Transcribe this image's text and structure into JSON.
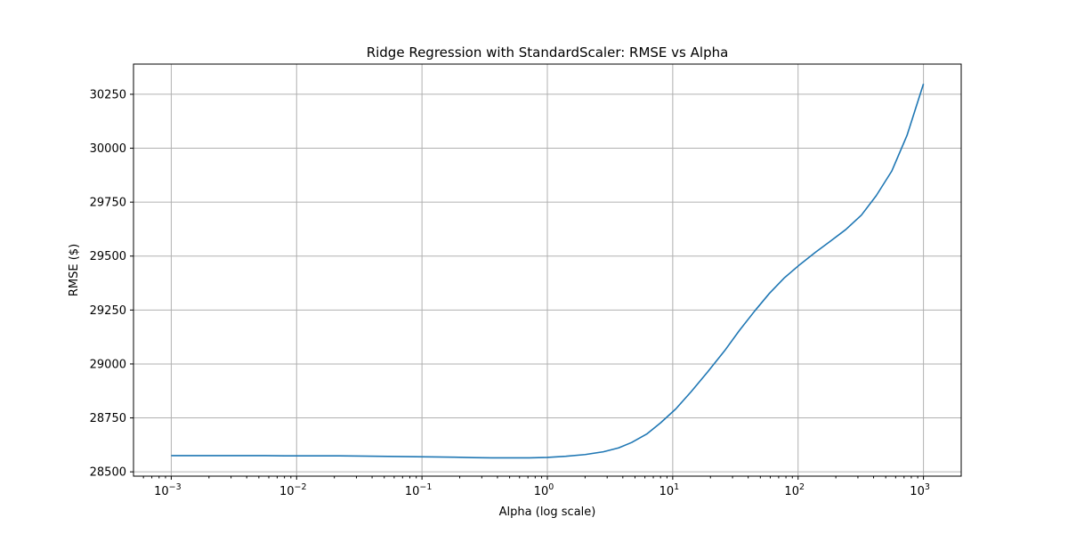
{
  "chart_data": {
    "type": "line",
    "title": "Ridge Regression with StandardScaler: RMSE vs Alpha",
    "xlabel": "Alpha (log scale)",
    "ylabel": "RMSE ($)",
    "x_scale": "log",
    "xlim": [
      0.0005,
      2000
    ],
    "ylim": [
      28480,
      30390
    ],
    "grid": true,
    "legend": "none",
    "x_ticks": [
      {
        "value": 0.001,
        "base": "10",
        "exp": "−3"
      },
      {
        "value": 0.01,
        "base": "10",
        "exp": "−2"
      },
      {
        "value": 0.1,
        "base": "10",
        "exp": "−1"
      },
      {
        "value": 1,
        "base": "10",
        "exp": "0"
      },
      {
        "value": 10,
        "base": "10",
        "exp": "1"
      },
      {
        "value": 100,
        "base": "10",
        "exp": "2"
      },
      {
        "value": 1000,
        "base": "10",
        "exp": "3"
      }
    ],
    "y_ticks": [
      28500,
      28750,
      29000,
      29250,
      29500,
      29750,
      30000,
      30250
    ],
    "series": [
      {
        "color": "#1f77b4",
        "x": [
          0.001,
          0.0014,
          0.002,
          0.0028,
          0.004,
          0.0056,
          0.008,
          0.011,
          0.016,
          0.022,
          0.032,
          0.045,
          0.064,
          0.09,
          0.13,
          0.18,
          0.26,
          0.36,
          0.51,
          0.72,
          1.0,
          1.4,
          2.0,
          2.8,
          3.7,
          4.7,
          6.2,
          8.0,
          10.6,
          14.0,
          19.0,
          26.0,
          34.0,
          45.0,
          59.0,
          78.0,
          104.0,
          137.0,
          180.0,
          240.0,
          320.0,
          420.0,
          560.0,
          740.0,
          1000.0
        ],
        "y": [
          28575,
          28575,
          28575,
          28575,
          28575,
          28575,
          28574,
          28574,
          28574,
          28574,
          28573,
          28572,
          28571,
          28570,
          28569,
          28568,
          28566,
          28565,
          28565,
          28565,
          28567,
          28572,
          28580,
          28593,
          28611,
          28636,
          28675,
          28727,
          28792,
          28871,
          28963,
          29062,
          29155,
          29245,
          29327,
          29400,
          29462,
          29517,
          29568,
          29623,
          29690,
          29780,
          29895,
          30060,
          30298
        ]
      }
    ]
  }
}
